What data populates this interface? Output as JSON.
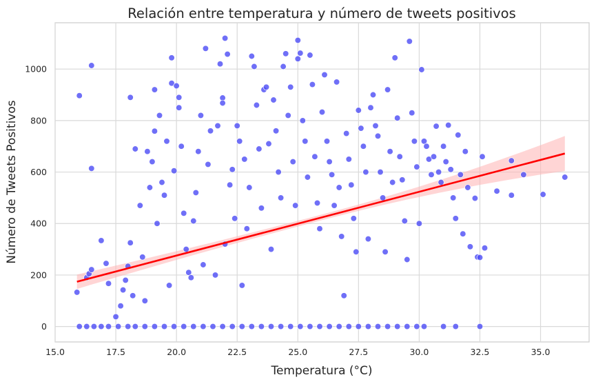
{
  "chart_data": {
    "type": "scatter",
    "title": "Relación entre temperatura y número de tweets positivos",
    "xlabel": "Temperatura (°C)",
    "ylabel": "Número de Tweets Positivos",
    "xlim": [
      15.0,
      37.0
    ],
    "ylim": [
      -60,
      1180
    ],
    "x_ticks": [
      15.0,
      17.5,
      20.0,
      22.5,
      25.0,
      27.5,
      30.0,
      32.5,
      35.0
    ],
    "x_tick_labels": [
      "15.0",
      "17.5",
      "20.0",
      "22.5",
      "25.0",
      "27.5",
      "30.0",
      "32.5",
      "35.0"
    ],
    "y_ticks": [
      0,
      200,
      400,
      600,
      800,
      1000
    ],
    "y_tick_labels": [
      "0",
      "200",
      "400",
      "600",
      "800",
      "1000"
    ],
    "grid": true,
    "point_color": "#4b4bf5",
    "regression": {
      "x": [
        15.9,
        36.0
      ],
      "y": [
        174,
        672
      ],
      "color": "#ff0000",
      "ci_color": "#ffb3b3",
      "ci_halfwidth_start": 28,
      "ci_halfwidth_mid": 11,
      "ci_halfwidth_end": 68
    },
    "series": [
      {
        "points": [
          [
            15.9,
            133
          ],
          [
            16.0,
            897
          ],
          [
            16.3,
            190
          ],
          [
            16.4,
            205
          ],
          [
            16.5,
            1014
          ],
          [
            16.5,
            614
          ],
          [
            16.5,
            221
          ],
          [
            16.9,
            334
          ],
          [
            17.1,
            245
          ],
          [
            17.2,
            167
          ],
          [
            17.5,
            38
          ],
          [
            17.7,
            80
          ],
          [
            17.8,
            142
          ],
          [
            17.9,
            180
          ],
          [
            18.0,
            234
          ],
          [
            18.1,
            325
          ],
          [
            18.1,
            890
          ],
          [
            18.2,
            120
          ],
          [
            18.3,
            690
          ],
          [
            18.5,
            470
          ],
          [
            18.6,
            270
          ],
          [
            18.7,
            100
          ],
          [
            18.8,
            680
          ],
          [
            18.9,
            540
          ],
          [
            19.0,
            640
          ],
          [
            19.1,
            759
          ],
          [
            19.1,
            920
          ],
          [
            19.2,
            400
          ],
          [
            19.3,
            820
          ],
          [
            19.4,
            560
          ],
          [
            19.5,
            510
          ],
          [
            19.6,
            720
          ],
          [
            19.7,
            160
          ],
          [
            19.8,
            945
          ],
          [
            19.8,
            1044
          ],
          [
            19.9,
            605
          ],
          [
            20.0,
            935
          ],
          [
            20.1,
            890
          ],
          [
            20.1,
            850
          ],
          [
            20.2,
            700
          ],
          [
            20.3,
            440
          ],
          [
            20.4,
            300
          ],
          [
            20.5,
            210
          ],
          [
            20.6,
            190
          ],
          [
            20.7,
            410
          ],
          [
            20.8,
            520
          ],
          [
            20.9,
            680
          ],
          [
            21.0,
            820
          ],
          [
            21.1,
            240
          ],
          [
            21.2,
            1080
          ],
          [
            21.3,
            630
          ],
          [
            21.4,
            760
          ],
          [
            21.6,
            200
          ],
          [
            21.7,
            780
          ],
          [
            21.8,
            1020
          ],
          [
            21.9,
            888
          ],
          [
            21.9,
            868
          ],
          [
            22.0,
            1120
          ],
          [
            22.0,
            320
          ],
          [
            22.1,
            1058
          ],
          [
            22.2,
            550
          ],
          [
            22.3,
            610
          ],
          [
            22.4,
            420
          ],
          [
            22.5,
            780
          ],
          [
            22.6,
            720
          ],
          [
            22.7,
            160
          ],
          [
            22.8,
            650
          ],
          [
            22.9,
            380
          ],
          [
            23.0,
            540
          ],
          [
            23.1,
            1050
          ],
          [
            23.2,
            1010
          ],
          [
            23.3,
            860
          ],
          [
            23.4,
            690
          ],
          [
            23.5,
            460
          ],
          [
            23.6,
            920
          ],
          [
            23.7,
            930
          ],
          [
            23.8,
            710
          ],
          [
            23.9,
            300
          ],
          [
            24.0,
            880
          ],
          [
            24.1,
            760
          ],
          [
            24.2,
            600
          ],
          [
            24.3,
            500
          ],
          [
            24.4,
            1010
          ],
          [
            24.5,
            1060
          ],
          [
            24.6,
            820
          ],
          [
            24.7,
            930
          ],
          [
            24.8,
            640
          ],
          [
            24.9,
            470
          ],
          [
            25.0,
            1112
          ],
          [
            25.0,
            1040
          ],
          [
            25.1,
            1062
          ],
          [
            25.2,
            800
          ],
          [
            25.3,
            720
          ],
          [
            25.4,
            580
          ],
          [
            25.5,
            1054
          ],
          [
            25.6,
            940
          ],
          [
            25.7,
            660
          ],
          [
            25.8,
            480
          ],
          [
            25.9,
            380
          ],
          [
            26.0,
            833
          ],
          [
            26.1,
            978
          ],
          [
            26.2,
            720
          ],
          [
            26.3,
            640
          ],
          [
            26.4,
            590
          ],
          [
            26.5,
            470
          ],
          [
            26.6,
            950
          ],
          [
            26.7,
            540
          ],
          [
            26.8,
            350
          ],
          [
            26.9,
            120
          ],
          [
            27.0,
            750
          ],
          [
            27.1,
            650
          ],
          [
            27.2,
            550
          ],
          [
            27.3,
            420
          ],
          [
            27.4,
            290
          ],
          [
            27.5,
            840
          ],
          [
            27.6,
            770
          ],
          [
            27.7,
            700
          ],
          [
            27.8,
            600
          ],
          [
            27.9,
            340
          ],
          [
            28.0,
            850
          ],
          [
            28.1,
            900
          ],
          [
            28.2,
            780
          ],
          [
            28.3,
            740
          ],
          [
            28.4,
            600
          ],
          [
            28.5,
            500
          ],
          [
            28.6,
            290
          ],
          [
            28.7,
            920
          ],
          [
            28.8,
            680
          ],
          [
            28.9,
            560
          ],
          [
            29.0,
            1044
          ],
          [
            29.1,
            810
          ],
          [
            29.2,
            660
          ],
          [
            29.3,
            570
          ],
          [
            29.4,
            410
          ],
          [
            29.5,
            260
          ],
          [
            29.6,
            1108
          ],
          [
            29.7,
            830
          ],
          [
            29.8,
            720
          ],
          [
            29.9,
            620
          ],
          [
            30.0,
            400
          ],
          [
            30.1,
            998
          ],
          [
            30.2,
            720
          ],
          [
            30.3,
            700
          ],
          [
            30.4,
            650
          ],
          [
            30.5,
            590
          ],
          [
            30.6,
            660
          ],
          [
            30.7,
            778
          ],
          [
            30.8,
            600
          ],
          [
            30.9,
            560
          ],
          [
            31.0,
            700
          ],
          [
            31.1,
            640
          ],
          [
            31.2,
            782
          ],
          [
            31.3,
            610
          ],
          [
            31.4,
            500
          ],
          [
            31.5,
            420
          ],
          [
            31.6,
            744
          ],
          [
            31.7,
            590
          ],
          [
            31.8,
            360
          ],
          [
            31.9,
            680
          ],
          [
            32.0,
            540
          ],
          [
            32.1,
            310
          ],
          [
            32.3,
            498
          ],
          [
            32.4,
            270
          ],
          [
            32.5,
            268
          ],
          [
            32.6,
            660
          ],
          [
            32.7,
            305
          ],
          [
            33.2,
            526
          ],
          [
            33.8,
            644
          ],
          [
            33.8,
            510
          ],
          [
            34.3,
            590
          ],
          [
            35.1,
            513
          ],
          [
            36.0,
            580
          ],
          [
            16.0,
            0
          ],
          [
            16.3,
            0
          ],
          [
            16.6,
            0
          ],
          [
            16.9,
            0
          ],
          [
            17.2,
            0
          ],
          [
            17.6,
            0
          ],
          [
            18.0,
            0
          ],
          [
            18.3,
            0
          ],
          [
            18.7,
            0
          ],
          [
            19.1,
            0
          ],
          [
            19.5,
            0
          ],
          [
            19.9,
            0
          ],
          [
            20.3,
            0
          ],
          [
            20.7,
            0
          ],
          [
            21.1,
            0
          ],
          [
            21.5,
            0
          ],
          [
            21.9,
            0
          ],
          [
            22.3,
            0
          ],
          [
            22.7,
            0
          ],
          [
            23.1,
            0
          ],
          [
            23.5,
            0
          ],
          [
            23.9,
            0
          ],
          [
            24.3,
            0
          ],
          [
            24.7,
            0
          ],
          [
            25.1,
            0
          ],
          [
            25.5,
            0
          ],
          [
            25.9,
            0
          ],
          [
            26.3,
            0
          ],
          [
            26.7,
            0
          ],
          [
            27.1,
            0
          ],
          [
            27.5,
            0
          ],
          [
            27.9,
            0
          ],
          [
            28.3,
            0
          ],
          [
            28.7,
            0
          ],
          [
            29.1,
            0
          ],
          [
            29.5,
            0
          ],
          [
            29.9,
            0
          ],
          [
            30.2,
            0
          ],
          [
            31.0,
            0
          ],
          [
            31.5,
            0
          ],
          [
            32.5,
            0
          ]
        ]
      }
    ]
  }
}
